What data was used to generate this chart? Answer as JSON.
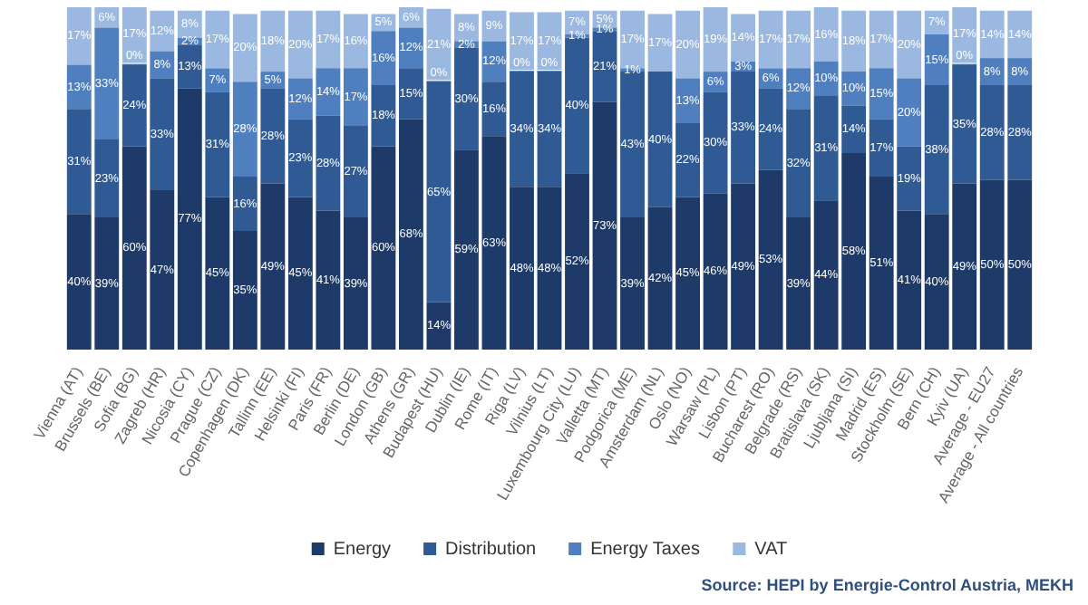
{
  "chart_data": {
    "type": "bar",
    "stacked": true,
    "grid": false,
    "tick_labels": "x",
    "legend": "bottom",
    "categories": [
      "Vienna (AT)",
      "Brussels (BE)",
      "Sofia (BG)",
      "Zagreb (HR)",
      "Nicosia (CY)",
      "Prague (CZ)",
      "Copenhagen (DK)",
      "Tallinn (EE)",
      "Helsinki (FI)",
      "Paris (FR)",
      "Berlin (DE)",
      "London (GB)",
      "Athens (GR)",
      "Budapest (HU)",
      "Dublin (IE)",
      "Rome (IT)",
      "Riga (LV)",
      "Vilnius (LT)",
      "Luxembourg City (LU)",
      "Valletta (MT)",
      "Podgorica (ME)",
      "Amsterdam (NL)",
      "Oslo (NO)",
      "Warsaw (PL)",
      "Lisbon (PT)",
      "Bucharest (RO)",
      "Belgrade (RS)",
      "Bratislava (SK)",
      "Ljubljana (SI)",
      "Madrid (ES)",
      "Stockholm (SE)",
      "Bern (CH)",
      "Kyiv (UA)",
      "Average - EU27",
      "Average - All countries"
    ],
    "series": [
      {
        "name": "Energy",
        "color": "#1d3a68",
        "values": [
          40,
          39,
          60,
          47,
          77,
          45,
          35,
          49,
          45,
          41,
          39,
          60,
          68,
          14,
          59,
          63,
          48,
          48,
          52,
          73,
          39,
          42,
          45,
          46,
          49,
          53,
          39,
          44,
          58,
          51,
          41,
          40,
          49,
          50,
          50
        ],
        "value_labels": [
          "40%",
          "39%",
          "60%",
          "47%",
          "77%",
          "45%",
          "35%",
          "49%",
          "45%",
          "41%",
          "39%",
          "60%",
          "68%",
          "14%",
          "59%",
          "63%",
          "48%",
          "48%",
          "52%",
          "73%",
          "39%",
          "42%",
          "45%",
          "46%",
          "49%",
          "53%",
          "39%",
          "44%",
          "58%",
          "51%",
          "41%",
          "40%",
          "49%",
          "50%",
          "50%"
        ]
      },
      {
        "name": "Distribution",
        "color": "#2f5a94",
        "values": [
          31,
          23,
          24,
          33,
          13,
          31,
          16,
          28,
          23,
          28,
          27,
          18,
          15,
          65,
          30,
          16,
          34,
          34,
          40,
          21,
          43,
          40,
          22,
          30,
          33,
          24,
          32,
          31,
          14,
          17,
          19,
          38,
          35,
          28,
          28
        ],
        "value_labels": [
          "31%",
          "23%",
          "24%",
          "33%",
          "13%",
          "31%",
          "16%",
          "28%",
          "23%",
          "28%",
          "27%",
          "18%",
          "15%",
          "65%",
          "30%",
          "16%",
          "34%",
          "34%",
          "40%",
          "21%",
          "43%",
          "40%",
          "22%",
          "30%",
          "33%",
          "24%",
          "32%",
          "31%",
          "14%",
          "17%",
          "19%",
          "38%",
          "35%",
          "28%",
          "28%"
        ]
      },
      {
        "name": "Energy Taxes",
        "color": "#4f7fbf",
        "values": [
          13,
          33,
          0,
          8,
          2,
          7,
          28,
          5,
          12,
          14,
          17,
          16,
          12,
          0,
          2,
          12,
          0,
          0,
          1,
          1,
          1,
          null,
          13,
          6,
          3,
          6,
          12,
          10,
          10,
          15,
          20,
          15,
          0,
          8,
          8
        ],
        "value_labels": [
          "13%",
          "33%",
          "0%",
          "8%",
          "2%",
          "7%",
          "28%",
          "5%",
          "12%",
          "14%",
          "17%",
          "16%",
          "12%",
          "0%",
          "2%",
          "12%",
          "0%",
          "0%",
          "1%",
          "1%",
          "1%",
          null,
          "13%",
          "6%",
          "3%",
          "6%",
          "12%",
          "10%",
          "10%",
          "15%",
          "20%",
          "15%",
          "0%",
          "8%",
          "8%"
        ]
      },
      {
        "name": "VAT",
        "color": "#9ab8e0",
        "values": [
          17,
          6,
          17,
          12,
          8,
          17,
          20,
          18,
          20,
          17,
          16,
          5,
          6,
          21,
          8,
          9,
          17,
          17,
          7,
          5,
          17,
          17,
          20,
          19,
          14,
          17,
          17,
          16,
          18,
          17,
          20,
          7,
          17,
          14,
          14
        ],
        "value_labels": [
          "17%",
          "6%",
          "17%",
          "12%",
          "8%",
          "17%",
          "20%",
          "18%",
          "20%",
          "17%",
          "16%",
          "5%",
          "6%",
          "21%",
          "8%",
          "9%",
          "17%",
          "17%",
          "7%",
          "5%",
          "17%",
          "17%",
          "20%",
          "19%",
          "14%",
          "17%",
          "17%",
          "16%",
          "18%",
          "17%",
          "20%",
          "7%",
          "17%",
          "14%",
          "14%"
        ]
      }
    ],
    "annotations": [
      "Source: HEPI by Energie-Control Austria, MEKH"
    ]
  }
}
